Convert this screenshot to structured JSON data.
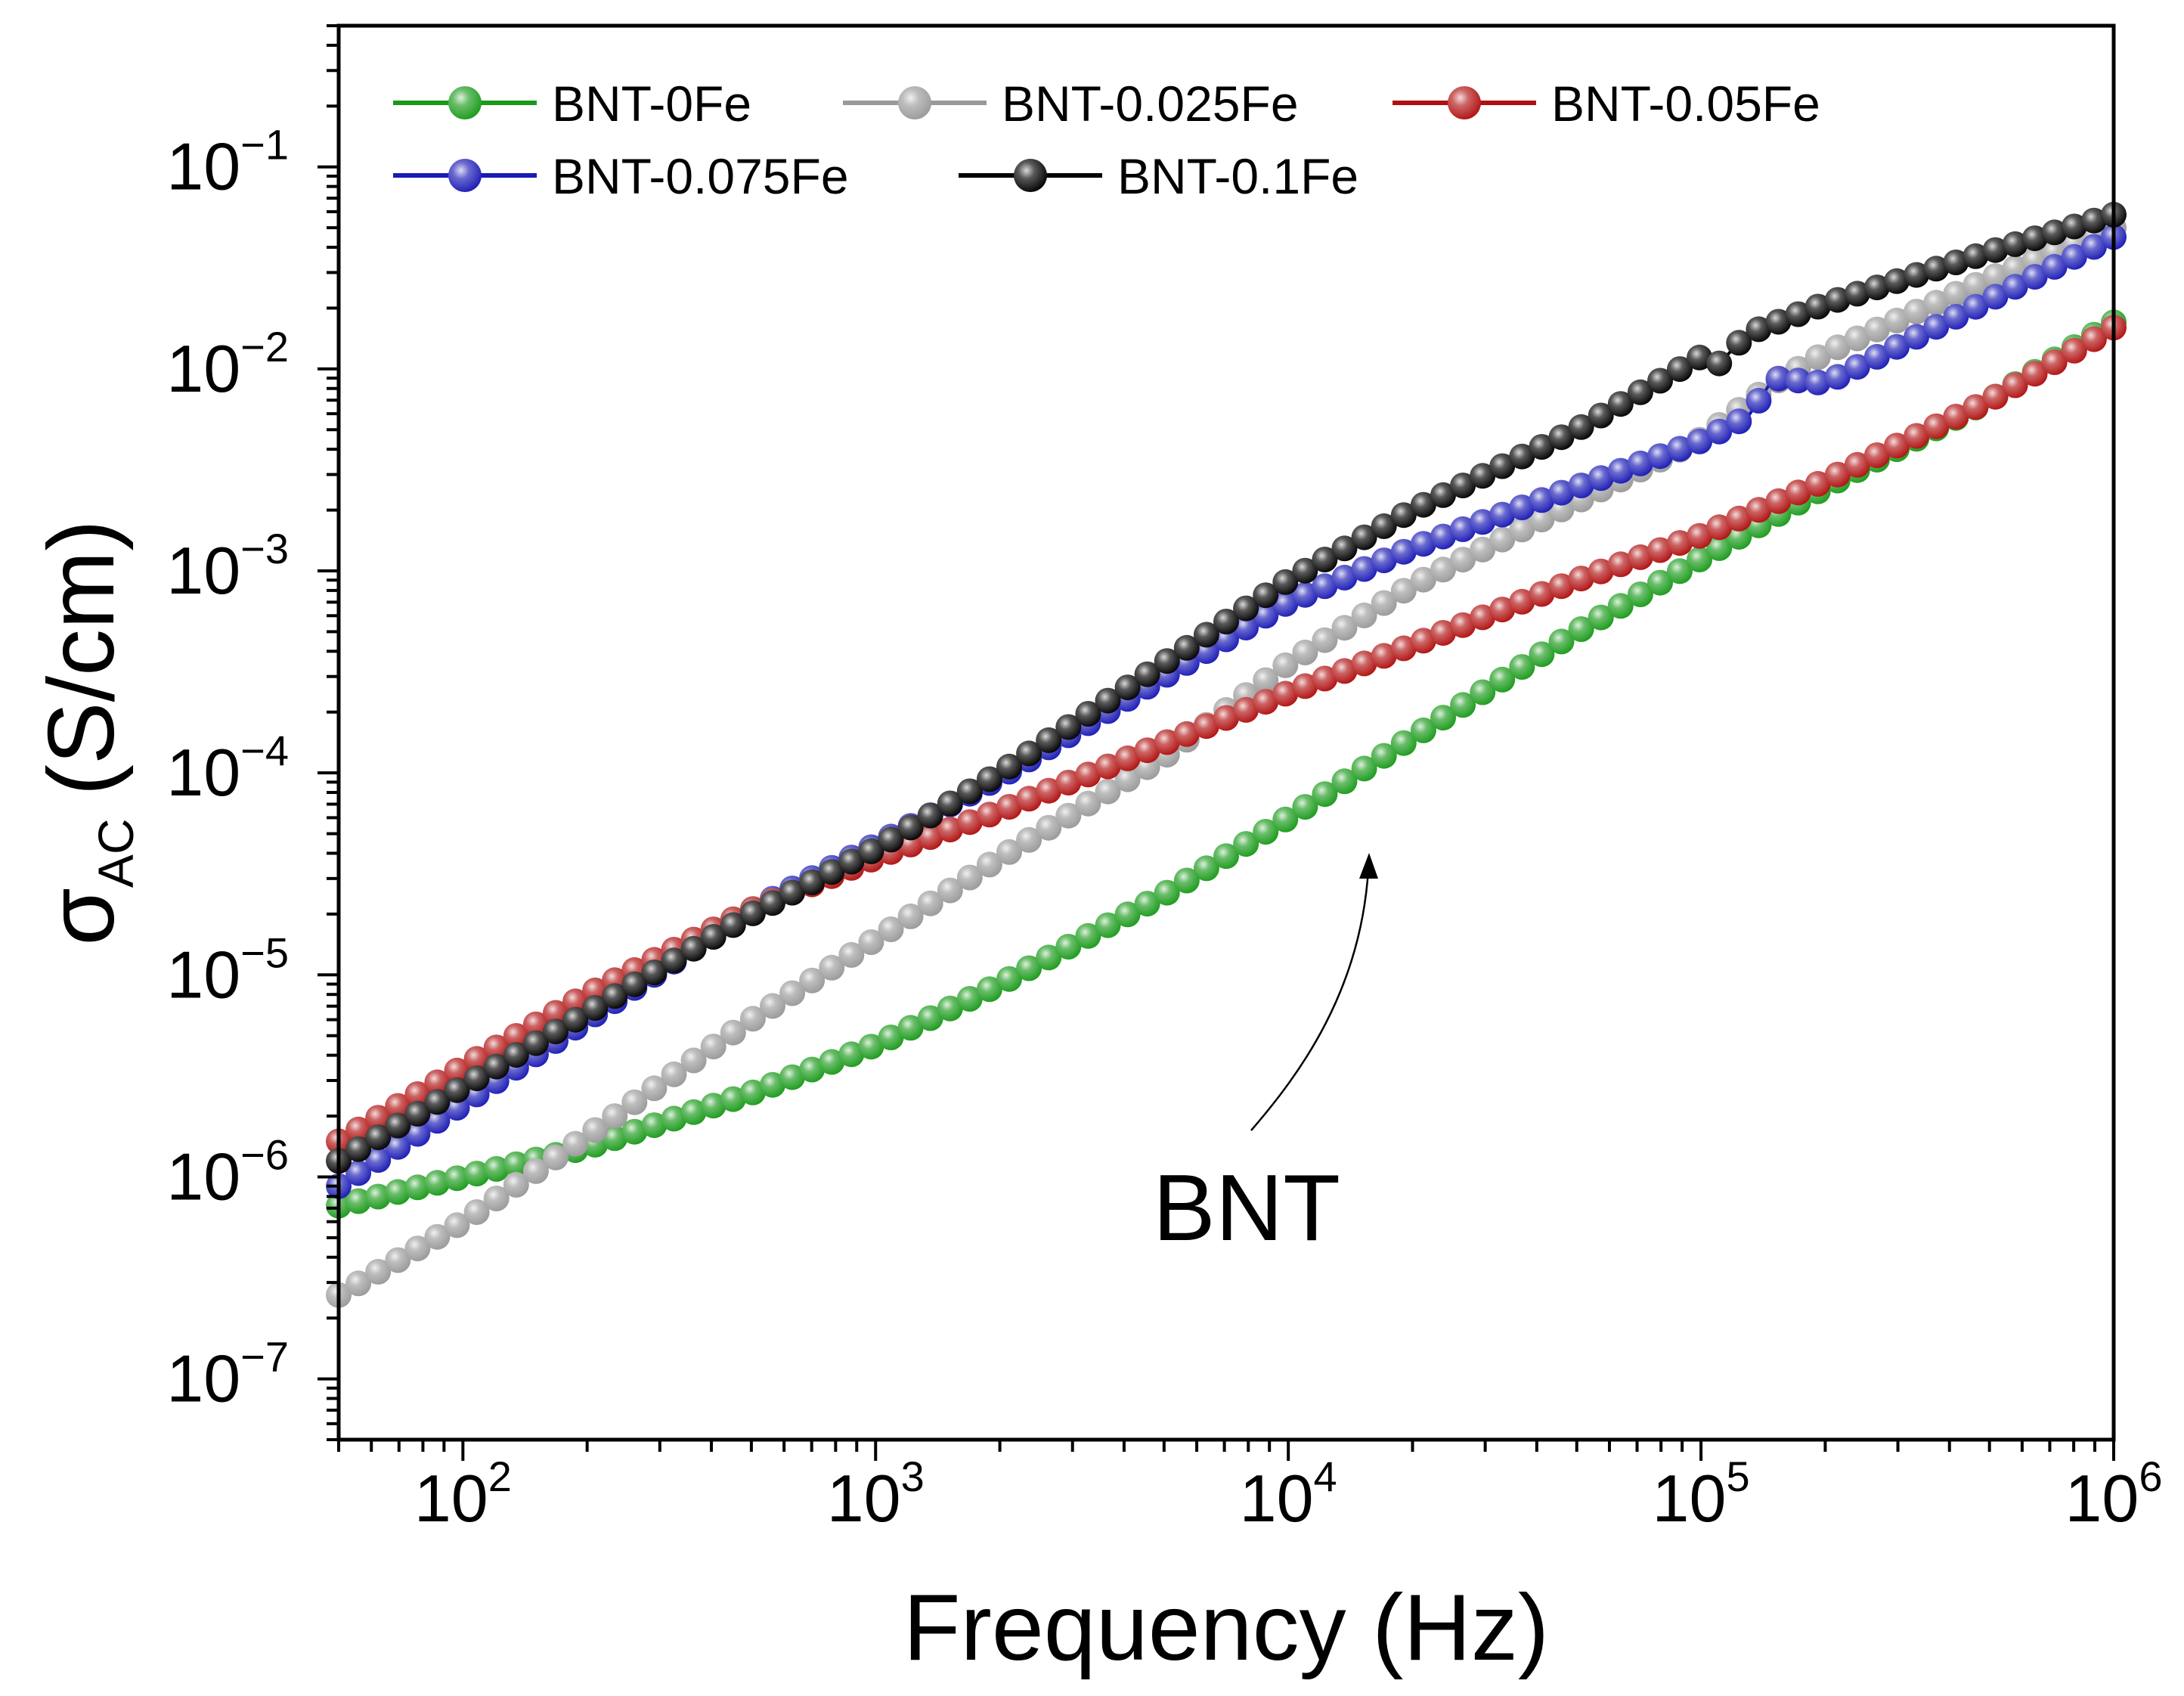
{
  "chart_data": {
    "type": "scatter",
    "subtype": "line-with-markers",
    "xlabel": "Frequency (Hz)",
    "ylabel_main": "σ",
    "ylabel_sub": "AC",
    "ylabel_unit": "(S/cm)",
    "xscale": "log",
    "yscale": "log",
    "xlim": [
      50,
      1000000
    ],
    "ylim": [
      5e-08,
      0.5
    ],
    "x_ticks": [
      {
        "base": "10",
        "exp": "2",
        "value": 100
      },
      {
        "base": "10",
        "exp": "3",
        "value": 1000
      },
      {
        "base": "10",
        "exp": "4",
        "value": 10000
      },
      {
        "base": "10",
        "exp": "5",
        "value": 100000
      },
      {
        "base": "10",
        "exp": "6",
        "value": 1000000
      }
    ],
    "y_ticks": [
      {
        "base": "10",
        "exp": "−7",
        "value": 1e-07
      },
      {
        "base": "10",
        "exp": "−6",
        "value": 1e-06
      },
      {
        "base": "10",
        "exp": "−5",
        "value": 1e-05
      },
      {
        "base": "10",
        "exp": "−4",
        "value": 0.0001
      },
      {
        "base": "10",
        "exp": "−3",
        "value": 0.001
      },
      {
        "base": "10",
        "exp": "−2",
        "value": 0.01
      },
      {
        "base": "10",
        "exp": "−1",
        "value": 0.1
      }
    ],
    "grid": false,
    "legend_position": "top-left",
    "series": [
      {
        "name": "BNT-0Fe",
        "color": "#1a9a1a",
        "x": [
          50,
          100,
          200,
          500,
          1000,
          2000,
          5000,
          10000,
          20000,
          50000,
          100000,
          200000,
          500000,
          1000000
        ],
        "y": [
          7.2e-07,
          1e-06,
          1.4e-06,
          2.6e-06,
          4.5e-06,
          9e-06,
          2.5e-05,
          6e-05,
          0.00015,
          0.0005,
          0.00115,
          0.0026,
          0.007,
          0.017
        ]
      },
      {
        "name": "BNT-0.025Fe",
        "color": "#999999",
        "x": [
          50,
          100,
          200,
          500,
          1000,
          2000,
          5000,
          10000,
          20000,
          50000,
          100000,
          150000,
          200000,
          500000,
          1000000
        ],
        "y": [
          2.6e-07,
          6e-07,
          1.6e-06,
          6e-06,
          1.5e-05,
          3.8e-05,
          0.00012,
          0.00035,
          0.00085,
          0.0022,
          0.0045,
          0.0085,
          0.012,
          0.028,
          0.05
        ]
      },
      {
        "name": "BNT-0.05Fe",
        "color": "#b01010",
        "x": [
          50,
          100,
          200,
          500,
          1000,
          2000,
          5000,
          10000,
          20000,
          50000,
          100000,
          200000,
          500000,
          1000000
        ],
        "y": [
          1.5e-06,
          3.5e-06,
          8e-06,
          2.1e-05,
          3.8e-05,
          6.5e-05,
          0.00014,
          0.00025,
          0.00043,
          0.0009,
          0.0015,
          0.0028,
          0.007,
          0.016
        ]
      },
      {
        "name": "BNT-0.075Fe",
        "color": "#1a1ab5",
        "x": [
          50,
          100,
          200,
          500,
          1000,
          2000,
          5000,
          10000,
          20000,
          50000,
          100000,
          130000,
          150000,
          200000,
          500000,
          1000000
        ],
        "y": [
          9e-07,
          2.3e-06,
          6e-06,
          2.1e-05,
          4.4e-05,
          9.5e-05,
          0.0003,
          0.0007,
          0.0013,
          0.0026,
          0.0044,
          0.0058,
          0.009,
          0.0085,
          0.022,
          0.045
        ]
      },
      {
        "name": "BNT-0.1Fe",
        "color": "#000000",
        "x": [
          50,
          100,
          200,
          500,
          1000,
          2000,
          5000,
          10000,
          20000,
          50000,
          100000,
          110000,
          130000,
          200000,
          500000,
          1000000
        ],
        "y": [
          1.2e-06,
          2.8e-06,
          6.5e-06,
          2e-05,
          4.2e-05,
          0.0001,
          0.00035,
          0.0009,
          0.002,
          0.005,
          0.0115,
          0.0105,
          0.015,
          0.021,
          0.038,
          0.058
        ]
      }
    ],
    "annotation": {
      "text": "BNT"
    }
  }
}
